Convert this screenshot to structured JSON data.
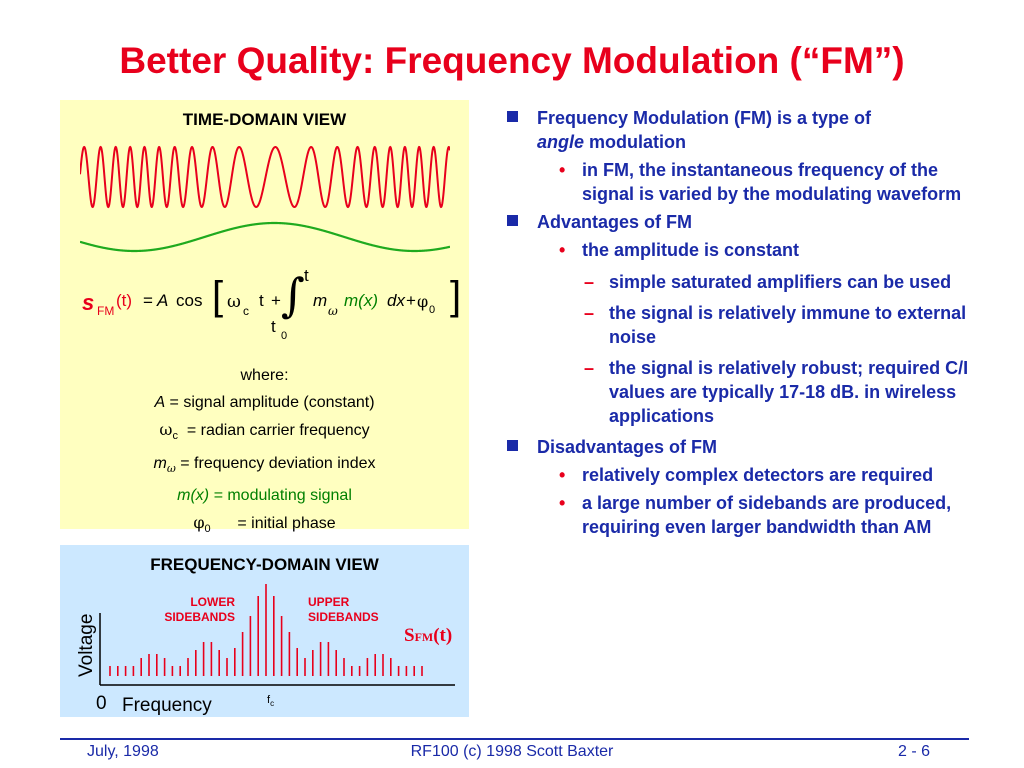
{
  "title": "Better Quality: Frequency Modulation (“FM”)",
  "time_domain": {
    "title": "TIME-DOMAIN VIEW",
    "formula": {
      "s": "s",
      "sub_fm": "FM",
      "t_arg": "(t)",
      "eq": "=",
      "A": "A",
      "cos": "cos",
      "lbracket": "[",
      "omega": "ω",
      "sub_c": "c",
      "t": "t",
      "plus": "+",
      "integral": "∫",
      "upper_t": "t",
      "lower_t": "t",
      "lower_sub": "0",
      "m": "m",
      "m_sub": "ω",
      "mx": "m(x)",
      "dx": "dx",
      "plus2": "+",
      "phi": "φ",
      "phi_sub": "0",
      "rbracket": "]"
    },
    "where": {
      "heading": "where:",
      "A_sym": "A",
      "A_eq": " = ",
      "A_desc": "signal amplitude (constant)",
      "w_sym": "ω",
      "w_sub": "c",
      "w_desc": "  = radian carrier frequency",
      "m_sym": "m",
      "m_sub": "ω",
      "m_desc": " = frequency deviation index",
      "mx_sym": "m(x) =",
      "mx_desc": " modulating signal",
      "phi_sym": "φ",
      "phi_sub": "0",
      "phi_desc": "      = initial phase"
    }
  },
  "freq_domain": {
    "title": "FREQUENCY-DOMAIN VIEW",
    "lower_1": "LOWER",
    "lower_2": "SIDEBANDS",
    "upper_1": "UPPER",
    "upper_2": "SIDEBANDS",
    "sfm_s": "S",
    "sfm_sub": "FM",
    "sfm_t": "(t)",
    "ylabel": "Voltage",
    "zero": "0",
    "xlabel": "Frequency",
    "fc": "f",
    "fc_sub": "c"
  },
  "bullets": {
    "b1": {
      "text1": "Frequency Modulation (FM) is a type of",
      "italic": "angle",
      "text2": " modulation"
    },
    "b1_1": "in FM, the instantaneous frequency of the signal is varied by the modulating waveform",
    "b2": "Advantages of FM",
    "b2_1": "the amplitude is constant",
    "b2_1_1": "simple saturated amplifiers can be used",
    "b2_1_2": "the signal is relatively immune to external noise",
    "b2_1_3": "the signal is relatively robust; required C/I values are typically 17-18 dB. in wireless applications",
    "b3": "Disadvantages of FM",
    "b3_1": "relatively complex detectors are required",
    "b3_2": "a large number of sidebands are produced, requiring even larger bandwidth than AM",
    "bullet_dot": "•",
    "dash": "–"
  },
  "footer": {
    "date": "July, 1998",
    "center": "RF100 (c) 1998 Scott Baxter",
    "page": "2 - 6"
  },
  "colors": {
    "title_red": "#e8001c",
    "bullet_blue": "#1a2aa8",
    "time_panel_bg": "#ffffc0",
    "freq_panel_bg": "#cce8ff",
    "green": "#008000"
  }
}
